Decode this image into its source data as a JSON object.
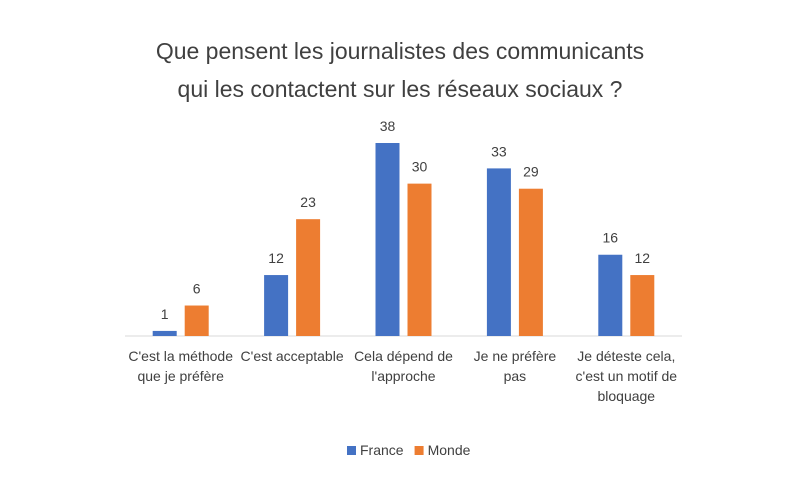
{
  "chart_data": {
    "type": "bar",
    "title": "Que pensent les journalistes des communicants qui les contactent sur les réseaux sociaux ?",
    "categories": [
      "C'est la méthode que je préfère",
      "C'est acceptable",
      "Cela dépend de l'approche",
      "Je ne préfère pas",
      "Je déteste cela, c'est un motif de bloquage"
    ],
    "series": [
      {
        "name": "France",
        "color": "#4472c4",
        "values": [
          1,
          12,
          38,
          33,
          16
        ]
      },
      {
        "name": "Monde",
        "color": "#ed7d31",
        "values": [
          6,
          23,
          30,
          29,
          12
        ]
      }
    ],
    "legend": "bottom"
  }
}
